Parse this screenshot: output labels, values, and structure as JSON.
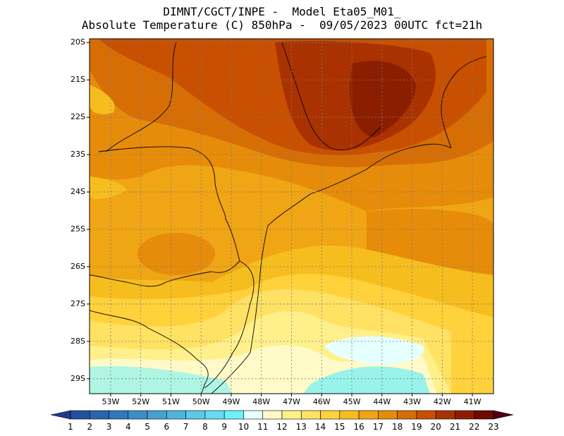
{
  "header": {
    "line1": "DIMNT/CGCT/INPE -  Model Eta05_M01_",
    "line2": "Absolute Temperature (C) 850hPa -  09/05/2023 00UTC fct=21h"
  },
  "map": {
    "lat_labels": [
      "20S",
      "21S",
      "22S",
      "23S",
      "24S",
      "25S",
      "26S",
      "27S",
      "28S",
      "29S"
    ],
    "lon_labels": [
      "53W",
      "52W",
      "51W",
      "50W",
      "49W",
      "48W",
      "47W",
      "46W",
      "45W",
      "44W",
      "43W",
      "42W",
      "41W"
    ],
    "lon_range": [
      -53.7,
      -40.3
    ],
    "lat_range": [
      -29.4,
      -19.9
    ]
  },
  "colorbar": {
    "labels": [
      "1",
      "2",
      "3",
      "4",
      "5",
      "6",
      "7",
      "8",
      "9",
      "10",
      "11",
      "12",
      "13",
      "14",
      "15",
      "16",
      "17",
      "18",
      "19",
      "20",
      "21",
      "22",
      "23"
    ],
    "colors": [
      "#1e3c8c",
      "#2150a0",
      "#2864b4",
      "#3278be",
      "#3c8cc8",
      "#46a0d2",
      "#50b4dc",
      "#5ac8e6",
      "#64dcf0",
      "#6ef0fa",
      "#e6ffff",
      "#fffac8",
      "#fff08c",
      "#ffe164",
      "#ffd23c",
      "#f5be1e",
      "#f0a514",
      "#e68c0a",
      "#d76e05",
      "#c85000",
      "#aa3200",
      "#8c1e00",
      "#6e0a00",
      "#500014"
    ]
  }
}
